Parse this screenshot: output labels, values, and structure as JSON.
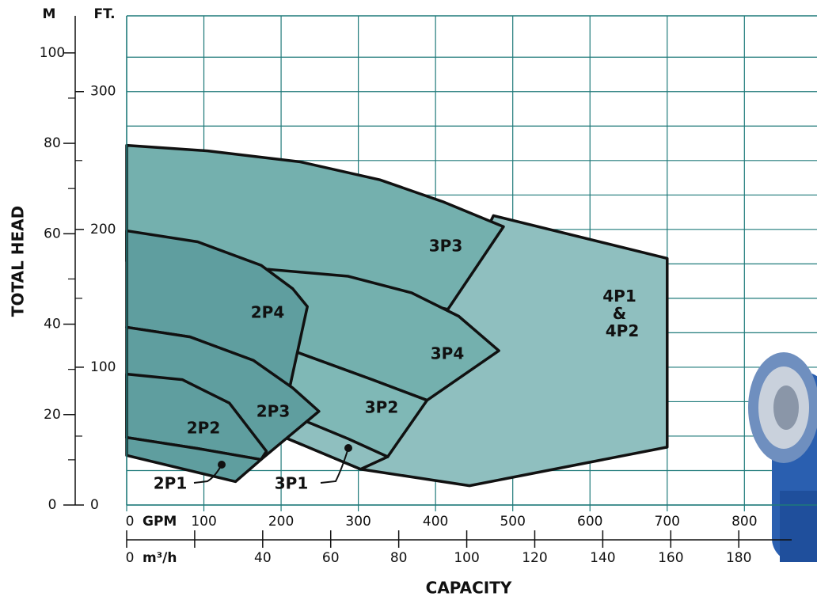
{
  "chart_data": {
    "type": "area",
    "y_axis_label": "TOTAL HEAD",
    "x_axis_label": "CAPACITY",
    "y_unit": "M",
    "y2_unit": "FT.",
    "x_unit": "GPM",
    "x2_unit": "m³/h",
    "xlim": [
      0,
      894
    ],
    "xticks": [
      0,
      100,
      200,
      300,
      400,
      500,
      600,
      700,
      800
    ],
    "x2lim": [
      0,
      203
    ],
    "x2ticks": [
      0,
      {
        "value": 20,
        "label": null
      },
      40,
      60,
      80,
      100,
      120,
      140,
      160,
      180
    ],
    "ylim": [
      0,
      108.2
    ],
    "yticks": [
      0,
      20,
      40,
      60,
      80,
      100
    ],
    "yminor": [
      10,
      30,
      50,
      70,
      90
    ],
    "y2lim": [
      0,
      355
    ],
    "y2ticks": [
      0,
      100,
      200,
      300
    ],
    "y2minor": [
      50,
      150,
      250
    ],
    "y2grid": [
      0,
      25,
      50,
      75,
      100,
      125,
      150,
      175,
      200,
      225,
      250,
      275,
      300,
      325
    ],
    "grid": true,
    "series": [
      {
        "name": "4P1 & 4P2",
        "color": "#8fbfbf",
        "axis": "y2",
        "x": [
          475,
          700,
          700,
          444,
          303,
          205,
          389,
          416
        ],
        "values": [
          210,
          179,
          42,
          14,
          26,
          49,
          76,
          142
        ]
      },
      {
        "name": "3P3",
        "color": "#74b0ae",
        "axis": "y2",
        "x": [
          0,
          105,
          225,
          328,
          410,
          488,
          416,
          184,
          0
        ],
        "values": [
          261,
          257,
          249,
          236,
          220,
          202,
          142,
          171,
          177
        ]
      },
      {
        "name": "3P4",
        "color": "#74b0ae",
        "axis": "y2",
        "x": [
          184,
          287,
          369,
          430,
          482,
          389,
          318,
          220
        ],
        "values": [
          171,
          166,
          154,
          137,
          112,
          76,
          91,
          111
        ]
      },
      {
        "name": "3P2",
        "color": "#7fb8b6",
        "axis": "y2",
        "x": [
          220,
          318,
          389,
          338,
          287,
          231,
          205,
          211
        ],
        "values": [
          111,
          91,
          76,
          35,
          48,
          61,
          49,
          85
        ]
      },
      {
        "name": "3P1",
        "color": "#8fbfbf",
        "axis": "y2",
        "x": [
          205,
          231,
          287,
          338,
          303
        ],
        "values": [
          49,
          61,
          48,
          35,
          26
        ]
      },
      {
        "name": "2P4",
        "color": "#5f9e9f",
        "axis": "y2",
        "x": [
          0,
          92,
          174,
          215,
          234,
          211,
          164,
          82,
          0
        ],
        "values": [
          199,
          191,
          174,
          157,
          144,
          85,
          105,
          122,
          129
        ]
      },
      {
        "name": "2P3",
        "color": "#5f9e9f",
        "axis": "y2",
        "x": [
          0,
          82,
          164,
          215,
          249,
          174,
          0
        ],
        "values": [
          129,
          122,
          105,
          85,
          68,
          33,
          49
        ]
      },
      {
        "name": "2P2",
        "color": "#5f9e9f",
        "axis": "y2",
        "x": [
          0,
          72,
          133,
          181,
          174,
          92,
          0
        ],
        "values": [
          95,
          91,
          74,
          39,
          33,
          41,
          49
        ]
      },
      {
        "name": "2P1",
        "color": "#5f9e9f",
        "axis": "y2",
        "x": [
          0,
          92,
          174,
          141,
          0
        ],
        "values": [
          49,
          41,
          33,
          17,
          36
        ]
      }
    ]
  }
}
